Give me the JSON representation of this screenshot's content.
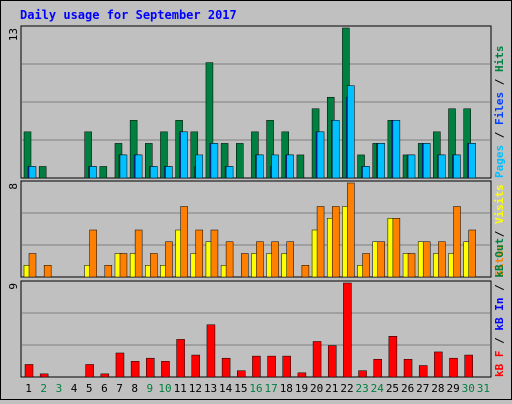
{
  "title": "Daily usage for September 2017",
  "colors": {
    "background": "#c0c0c0",
    "plot_bg": "#c0c0c0",
    "title": "#0000ff",
    "hits": "#008040",
    "files": "#0040ff",
    "pages": "#00c0ff",
    "visits": "#ffff00",
    "sites": "#ff8000",
    "kb_in": "#0000ff",
    "kb_out": "#008040",
    "kb_f": "#ff0000",
    "weekend": "#008040",
    "weekday": "#000000"
  },
  "chart_data": [
    {
      "type": "bar",
      "name_panel": "hits-files-pages",
      "ymax_label": "13",
      "ylim": [
        0,
        13
      ],
      "axis_labels": [
        {
          "text": "Pages",
          "color": "#00c0ff"
        },
        {
          "text": " / ",
          "color": "#000000"
        },
        {
          "text": "Files",
          "color": "#0040ff"
        },
        {
          "text": " / ",
          "color": "#000000"
        },
        {
          "text": "Hits",
          "color": "#008040"
        }
      ],
      "categories": [
        "1",
        "2",
        "3",
        "4",
        "5",
        "6",
        "7",
        "8",
        "9",
        "10",
        "11",
        "12",
        "13",
        "14",
        "15",
        "16",
        "17",
        "18",
        "19",
        "20",
        "21",
        "22",
        "23",
        "24",
        "25",
        "26",
        "27",
        "28",
        "29",
        "30",
        "31"
      ],
      "series": [
        {
          "name": "Hits",
          "values": [
            4,
            1,
            0,
            0,
            4,
            1,
            3,
            5,
            3,
            4,
            5,
            4,
            10,
            3,
            3,
            4,
            5,
            4,
            2,
            6,
            7,
            13,
            2,
            3,
            5,
            2,
            3,
            4,
            6,
            6,
            0
          ]
        },
        {
          "name": "Files",
          "values": [
            1,
            0,
            0,
            0,
            1,
            0,
            2,
            2,
            1,
            1,
            4,
            1,
            3,
            1,
            0,
            2,
            1,
            2,
            0,
            4,
            5,
            7,
            1,
            3,
            5,
            2,
            3,
            2,
            2,
            3,
            0
          ]
        },
        {
          "name": "Pages",
          "values": [
            1,
            0,
            0,
            0,
            1,
            0,
            2,
            2,
            1,
            1,
            4,
            2,
            3,
            1,
            0,
            2,
            2,
            2,
            0,
            4,
            5,
            8,
            1,
            3,
            5,
            2,
            3,
            2,
            2,
            3,
            0
          ]
        }
      ]
    },
    {
      "type": "bar",
      "name_panel": "visits-sites",
      "ymax_label": "8",
      "ylim": [
        0,
        8
      ],
      "axis_labels": [
        {
          "text": "Sites",
          "color": "#ff8000"
        },
        {
          "text": " / ",
          "color": "#000000"
        },
        {
          "text": "Visits",
          "color": "#ffff00"
        }
      ],
      "categories": [
        "1",
        "2",
        "3",
        "4",
        "5",
        "6",
        "7",
        "8",
        "9",
        "10",
        "11",
        "12",
        "13",
        "14",
        "15",
        "16",
        "17",
        "18",
        "19",
        "20",
        "21",
        "22",
        "23",
        "24",
        "25",
        "26",
        "27",
        "28",
        "29",
        "30",
        "31"
      ],
      "series": [
        {
          "name": "Visits",
          "values": [
            1,
            0,
            0,
            0,
            1,
            0,
            2,
            2,
            1,
            1,
            4,
            2,
            3,
            1,
            0,
            2,
            2,
            2,
            0,
            4,
            5,
            6,
            1,
            3,
            5,
            2,
            3,
            2,
            2,
            3,
            0
          ]
        },
        {
          "name": "Sites",
          "values": [
            2,
            1,
            0,
            0,
            4,
            1,
            2,
            4,
            2,
            3,
            6,
            4,
            4,
            3,
            2,
            3,
            3,
            3,
            1,
            6,
            6,
            8,
            2,
            3,
            5,
            2,
            3,
            3,
            6,
            4,
            0
          ]
        }
      ]
    },
    {
      "type": "bar",
      "name_panel": "kbytes",
      "ymax_label": "9",
      "ylim": [
        0,
        9
      ],
      "axis_labels": [
        {
          "text": "kB F",
          "color": "#ff0000"
        },
        {
          "text": " / ",
          "color": "#000000"
        },
        {
          "text": "kB In",
          "color": "#0000ff"
        },
        {
          "text": " / ",
          "color": "#000000"
        },
        {
          "text": "kB Out",
          "color": "#008040"
        }
      ],
      "categories": [
        "1",
        "2",
        "3",
        "4",
        "5",
        "6",
        "7",
        "8",
        "9",
        "10",
        "11",
        "12",
        "13",
        "14",
        "15",
        "16",
        "17",
        "18",
        "19",
        "20",
        "21",
        "22",
        "23",
        "24",
        "25",
        "26",
        "27",
        "28",
        "29",
        "30",
        "31"
      ],
      "series": [
        {
          "name": "kB F",
          "values": [
            1.2,
            0.3,
            0,
            0,
            1.2,
            0.3,
            2.3,
            1.5,
            1.8,
            1.5,
            3.6,
            2.1,
            5,
            1.8,
            0.6,
            2,
            2,
            2,
            0.4,
            3.4,
            3,
            9,
            0.6,
            1.7,
            3.9,
            1.7,
            1.1,
            2.4,
            1.8,
            2.1,
            0
          ]
        }
      ]
    }
  ],
  "day_labels": [
    {
      "text": "1",
      "weekend": false
    },
    {
      "text": "2",
      "weekend": true
    },
    {
      "text": "3",
      "weekend": true
    },
    {
      "text": "4",
      "weekend": false
    },
    {
      "text": "5",
      "weekend": false
    },
    {
      "text": "6",
      "weekend": false
    },
    {
      "text": "7",
      "weekend": false
    },
    {
      "text": "8",
      "weekend": false
    },
    {
      "text": "9",
      "weekend": true
    },
    {
      "text": "10",
      "weekend": true
    },
    {
      "text": "11",
      "weekend": false
    },
    {
      "text": "12",
      "weekend": false
    },
    {
      "text": "13",
      "weekend": false
    },
    {
      "text": "14",
      "weekend": false
    },
    {
      "text": "15",
      "weekend": false
    },
    {
      "text": "16",
      "weekend": true
    },
    {
      "text": "17",
      "weekend": true
    },
    {
      "text": "18",
      "weekend": false
    },
    {
      "text": "19",
      "weekend": false
    },
    {
      "text": "20",
      "weekend": false
    },
    {
      "text": "21",
      "weekend": false
    },
    {
      "text": "22",
      "weekend": false
    },
    {
      "text": "23",
      "weekend": true
    },
    {
      "text": "24",
      "weekend": true
    },
    {
      "text": "25",
      "weekend": false
    },
    {
      "text": "26",
      "weekend": false
    },
    {
      "text": "27",
      "weekend": false
    },
    {
      "text": "28",
      "weekend": false
    },
    {
      "text": "29",
      "weekend": false
    },
    {
      "text": "30",
      "weekend": true
    },
    {
      "text": "31",
      "weekend": true
    }
  ]
}
